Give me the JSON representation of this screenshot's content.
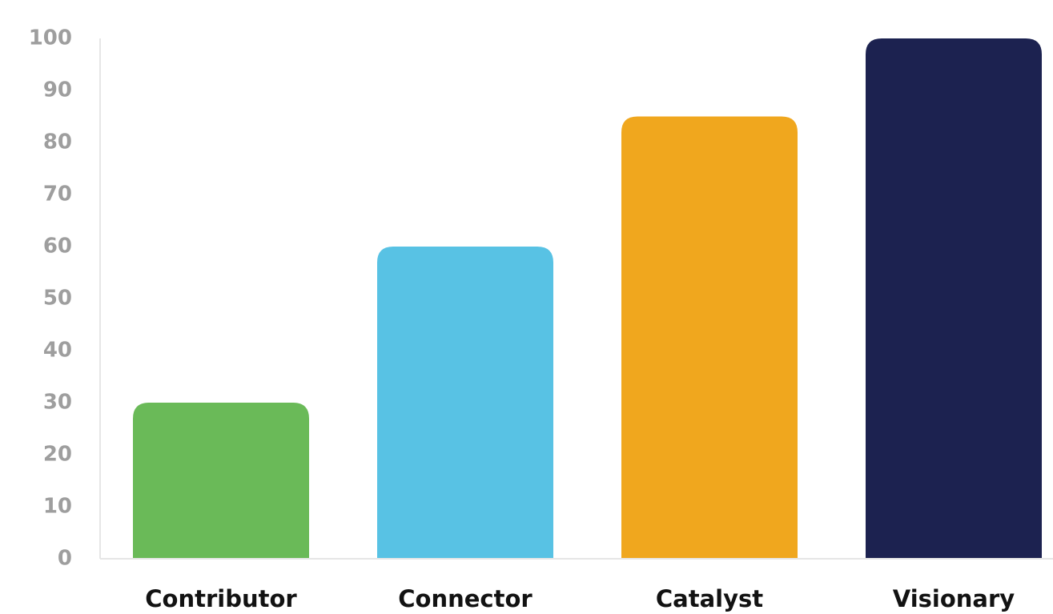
{
  "chart_data": {
    "type": "bar",
    "categories": [
      "Contributor",
      "Connector",
      "Catalyst",
      "Visionary"
    ],
    "values": [
      30,
      60,
      85,
      100
    ],
    "colors": [
      "#6aba58",
      "#58c2e4",
      "#f0a71e",
      "#1c2250"
    ],
    "ylim": [
      0,
      100
    ],
    "yticks": [
      "0",
      "10",
      "20",
      "30",
      "40",
      "50",
      "60",
      "70",
      "80",
      "90",
      "100"
    ],
    "grid": false,
    "axis_color": "#e6e6e6",
    "tick_color": "#9e9e9e",
    "category_label_color": "#121212"
  }
}
